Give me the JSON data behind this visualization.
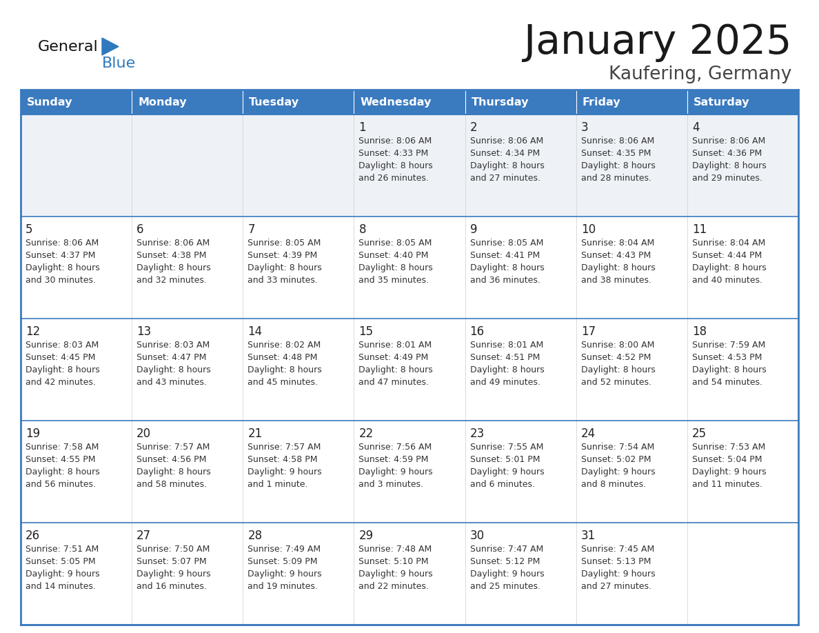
{
  "title": "January 2025",
  "subtitle": "Kaufering, Germany",
  "header_color": "#3a7abf",
  "header_text_color": "#ffffff",
  "cell_bg": "#ffffff",
  "row1_bg": "#eef2f7",
  "border_color": "#3a7abf",
  "grid_color": "#3a7abf",
  "days_of_week": [
    "Sunday",
    "Monday",
    "Tuesday",
    "Wednesday",
    "Thursday",
    "Friday",
    "Saturday"
  ],
  "title_color": "#1a1a1a",
  "subtitle_color": "#444444",
  "day_num_color": "#222222",
  "cell_text_color": "#333333",
  "logo_general_color": "#111111",
  "logo_blue_color": "#2e79be",
  "logo_triangle_color": "#2e79be",
  "calendar": [
    [
      {
        "day": "",
        "sunrise": "",
        "sunset": "",
        "daylight": ""
      },
      {
        "day": "",
        "sunrise": "",
        "sunset": "",
        "daylight": ""
      },
      {
        "day": "",
        "sunrise": "",
        "sunset": "",
        "daylight": ""
      },
      {
        "day": "1",
        "sunrise": "8:06 AM",
        "sunset": "4:33 PM",
        "daylight": "8 hours and 26 minutes."
      },
      {
        "day": "2",
        "sunrise": "8:06 AM",
        "sunset": "4:34 PM",
        "daylight": "8 hours and 27 minutes."
      },
      {
        "day": "3",
        "sunrise": "8:06 AM",
        "sunset": "4:35 PM",
        "daylight": "8 hours and 28 minutes."
      },
      {
        "day": "4",
        "sunrise": "8:06 AM",
        "sunset": "4:36 PM",
        "daylight": "8 hours and 29 minutes."
      }
    ],
    [
      {
        "day": "5",
        "sunrise": "8:06 AM",
        "sunset": "4:37 PM",
        "daylight": "8 hours and 30 minutes."
      },
      {
        "day": "6",
        "sunrise": "8:06 AM",
        "sunset": "4:38 PM",
        "daylight": "8 hours and 32 minutes."
      },
      {
        "day": "7",
        "sunrise": "8:05 AM",
        "sunset": "4:39 PM",
        "daylight": "8 hours and 33 minutes."
      },
      {
        "day": "8",
        "sunrise": "8:05 AM",
        "sunset": "4:40 PM",
        "daylight": "8 hours and 35 minutes."
      },
      {
        "day": "9",
        "sunrise": "8:05 AM",
        "sunset": "4:41 PM",
        "daylight": "8 hours and 36 minutes."
      },
      {
        "day": "10",
        "sunrise": "8:04 AM",
        "sunset": "4:43 PM",
        "daylight": "8 hours and 38 minutes."
      },
      {
        "day": "11",
        "sunrise": "8:04 AM",
        "sunset": "4:44 PM",
        "daylight": "8 hours and 40 minutes."
      }
    ],
    [
      {
        "day": "12",
        "sunrise": "8:03 AM",
        "sunset": "4:45 PM",
        "daylight": "8 hours and 42 minutes."
      },
      {
        "day": "13",
        "sunrise": "8:03 AM",
        "sunset": "4:47 PM",
        "daylight": "8 hours and 43 minutes."
      },
      {
        "day": "14",
        "sunrise": "8:02 AM",
        "sunset": "4:48 PM",
        "daylight": "8 hours and 45 minutes."
      },
      {
        "day": "15",
        "sunrise": "8:01 AM",
        "sunset": "4:49 PM",
        "daylight": "8 hours and 47 minutes."
      },
      {
        "day": "16",
        "sunrise": "8:01 AM",
        "sunset": "4:51 PM",
        "daylight": "8 hours and 49 minutes."
      },
      {
        "day": "17",
        "sunrise": "8:00 AM",
        "sunset": "4:52 PM",
        "daylight": "8 hours and 52 minutes."
      },
      {
        "day": "18",
        "sunrise": "7:59 AM",
        "sunset": "4:53 PM",
        "daylight": "8 hours and 54 minutes."
      }
    ],
    [
      {
        "day": "19",
        "sunrise": "7:58 AM",
        "sunset": "4:55 PM",
        "daylight": "8 hours and 56 minutes."
      },
      {
        "day": "20",
        "sunrise": "7:57 AM",
        "sunset": "4:56 PM",
        "daylight": "8 hours and 58 minutes."
      },
      {
        "day": "21",
        "sunrise": "7:57 AM",
        "sunset": "4:58 PM",
        "daylight": "9 hours and 1 minute."
      },
      {
        "day": "22",
        "sunrise": "7:56 AM",
        "sunset": "4:59 PM",
        "daylight": "9 hours and 3 minutes."
      },
      {
        "day": "23",
        "sunrise": "7:55 AM",
        "sunset": "5:01 PM",
        "daylight": "9 hours and 6 minutes."
      },
      {
        "day": "24",
        "sunrise": "7:54 AM",
        "sunset": "5:02 PM",
        "daylight": "9 hours and 8 minutes."
      },
      {
        "day": "25",
        "sunrise": "7:53 AM",
        "sunset": "5:04 PM",
        "daylight": "9 hours and 11 minutes."
      }
    ],
    [
      {
        "day": "26",
        "sunrise": "7:51 AM",
        "sunset": "5:05 PM",
        "daylight": "9 hours and 14 minutes."
      },
      {
        "day": "27",
        "sunrise": "7:50 AM",
        "sunset": "5:07 PM",
        "daylight": "9 hours and 16 minutes."
      },
      {
        "day": "28",
        "sunrise": "7:49 AM",
        "sunset": "5:09 PM",
        "daylight": "9 hours and 19 minutes."
      },
      {
        "day": "29",
        "sunrise": "7:48 AM",
        "sunset": "5:10 PM",
        "daylight": "9 hours and 22 minutes."
      },
      {
        "day": "30",
        "sunrise": "7:47 AM",
        "sunset": "5:12 PM",
        "daylight": "9 hours and 25 minutes."
      },
      {
        "day": "31",
        "sunrise": "7:45 AM",
        "sunset": "5:13 PM",
        "daylight": "9 hours and 27 minutes."
      },
      {
        "day": "",
        "sunrise": "",
        "sunset": "",
        "daylight": ""
      }
    ]
  ]
}
